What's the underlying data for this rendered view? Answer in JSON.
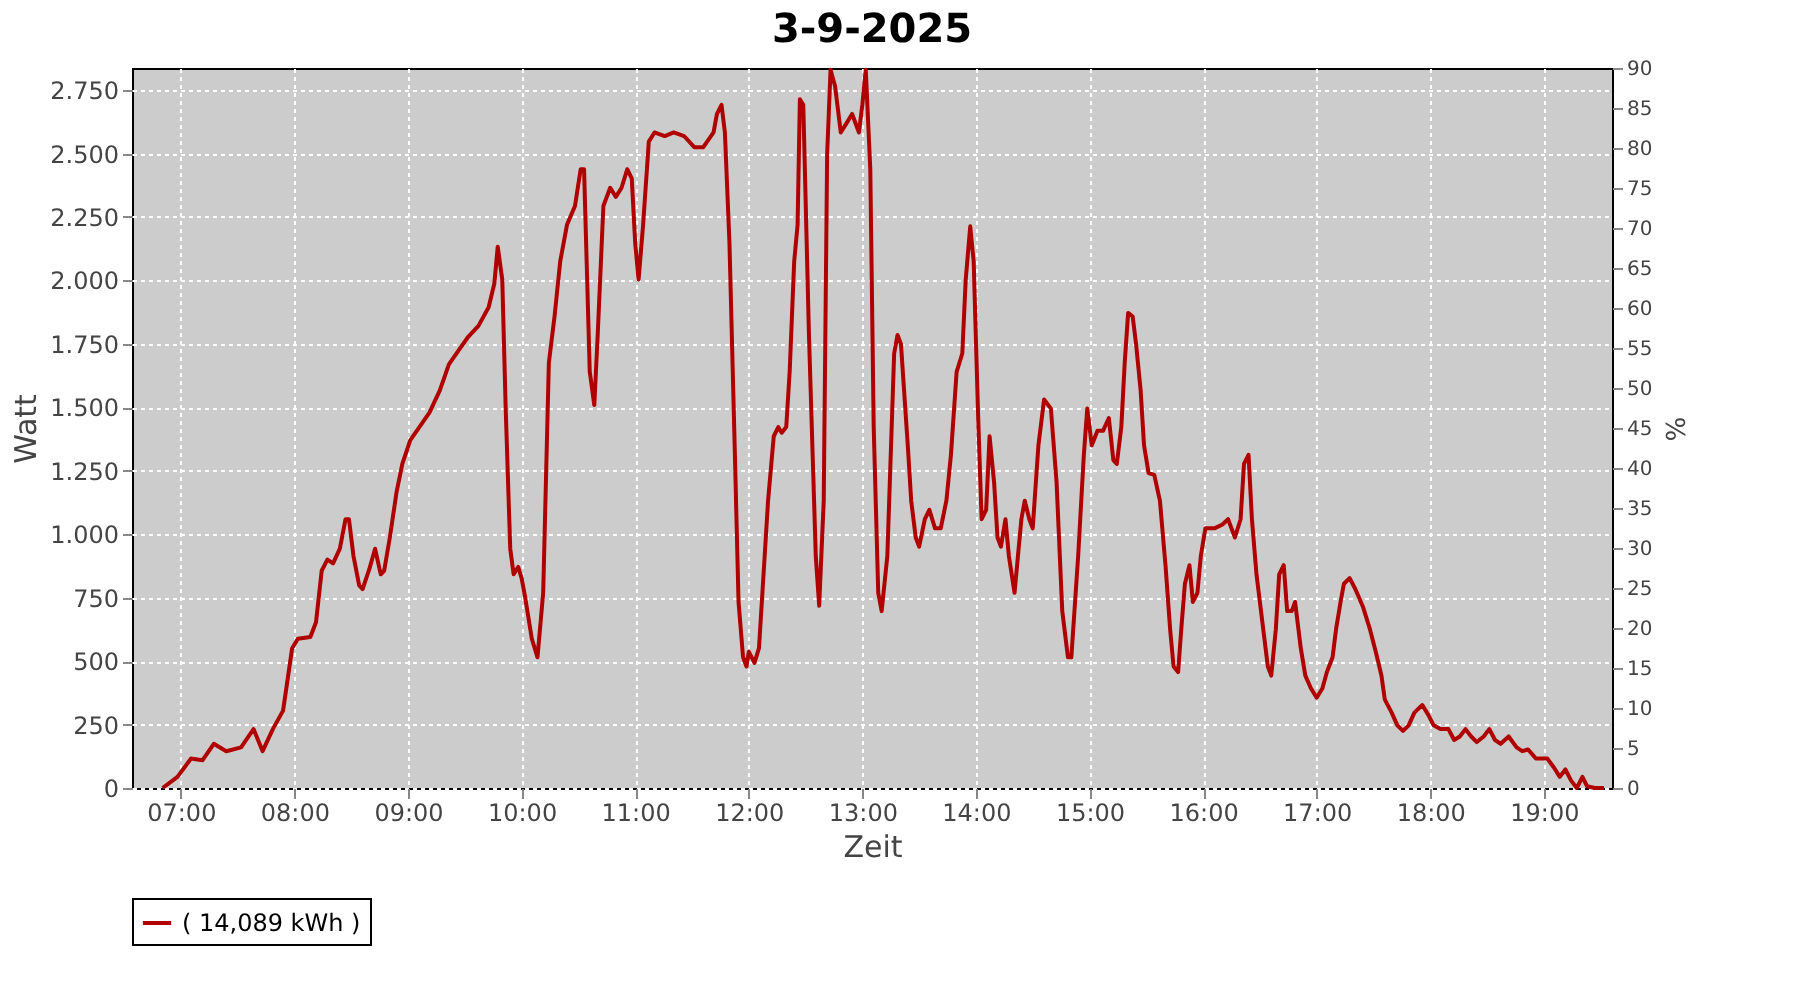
{
  "chart_data": {
    "type": "line",
    "title": "3-9-2025",
    "xlabel": "Zeit",
    "ylabel": "Watt",
    "y2label": "%",
    "xlim": [
      6.57,
      19.6
    ],
    "xticks": [
      {
        "value": 7,
        "label": "07:00"
      },
      {
        "value": 8,
        "label": "08:00"
      },
      {
        "value": 9,
        "label": "09:00"
      },
      {
        "value": 10,
        "label": "10:00"
      },
      {
        "value": 11,
        "label": "11:00"
      },
      {
        "value": 12,
        "label": "12:00"
      },
      {
        "value": 13,
        "label": "13:00"
      },
      {
        "value": 14,
        "label": "14:00"
      },
      {
        "value": 15,
        "label": "15:00"
      },
      {
        "value": 16,
        "label": "16:00"
      },
      {
        "value": 17,
        "label": "17:00"
      },
      {
        "value": 18,
        "label": "18:00"
      },
      {
        "value": 19,
        "label": "19:00"
      }
    ],
    "ylim": [
      0,
      2837
    ],
    "yticks": [
      0,
      250,
      500,
      750,
      {
        "value": 1000,
        "label": "1.000"
      },
      {
        "value": 1250,
        "label": "1.250"
      },
      {
        "value": 1500,
        "label": "1.500"
      },
      {
        "value": 1750,
        "label": "1.750"
      },
      {
        "value": 2000,
        "label": "2.000"
      },
      {
        "value": 2250,
        "label": "2.250"
      },
      {
        "value": 2500,
        "label": "2.500"
      },
      {
        "value": 2750,
        "label": "2.750"
      }
    ],
    "y2lim": [
      0,
      90
    ],
    "y2ticks": [
      0,
      5,
      10,
      15,
      20,
      25,
      30,
      35,
      40,
      45,
      50,
      55,
      60,
      65,
      70,
      75,
      80,
      85,
      90
    ],
    "grid": true,
    "legend": "bottom",
    "marker": "none",
    "line_style": "solid",
    "series": [
      {
        "name": "( 14,089 kWh )",
        "color": "#b00000",
        "x": [
          6.84,
          6.97,
          7.09,
          7.19,
          7.29,
          7.4,
          7.53,
          7.64,
          7.72,
          7.81,
          7.9,
          7.98,
          8.03,
          8.14,
          8.19,
          8.24,
          8.29,
          8.34,
          8.4,
          8.45,
          8.48,
          8.52,
          8.57,
          8.6,
          8.66,
          8.71,
          8.76,
          8.79,
          8.84,
          8.9,
          8.95,
          9.02,
          9.1,
          9.19,
          9.28,
          9.36,
          9.45,
          9.53,
          9.62,
          9.71,
          9.76,
          9.79,
          9.83,
          9.86,
          9.9,
          9.93,
          9.97,
          10.0,
          10.03,
          10.09,
          10.14,
          10.19,
          10.24,
          10.29,
          10.34,
          10.4,
          10.47,
          10.52,
          10.55,
          10.6,
          10.64,
          10.67,
          10.72,
          10.78,
          10.83,
          10.88,
          10.93,
          10.97,
          11.0,
          11.03,
          11.07,
          11.12,
          11.17,
          11.26,
          11.34,
          11.43,
          11.52,
          11.6,
          11.69,
          11.72,
          11.76,
          11.79,
          11.83,
          11.88,
          11.91,
          11.95,
          11.98,
          12.0,
          12.05,
          12.09,
          12.12,
          12.17,
          12.22,
          12.26,
          12.29,
          12.33,
          12.36,
          12.4,
          12.43,
          12.45,
          12.48,
          12.53,
          12.59,
          12.62,
          12.66,
          12.69,
          12.72,
          12.76,
          12.81,
          12.86,
          12.91,
          12.97,
          13.0,
          13.03,
          13.07,
          13.1,
          13.14,
          13.17,
          13.22,
          13.28,
          13.31,
          13.34,
          13.4,
          13.43,
          13.47,
          13.5,
          13.55,
          13.59,
          13.64,
          13.69,
          13.74,
          13.78,
          13.83,
          13.88,
          13.91,
          13.95,
          13.98,
          14.02,
          14.05,
          14.09,
          14.12,
          14.16,
          14.19,
          14.22,
          14.26,
          14.29,
          14.34,
          14.4,
          14.43,
          14.47,
          14.5,
          14.55,
          14.6,
          14.66,
          14.71,
          14.76,
          14.81,
          14.84,
          14.9,
          14.95,
          14.98,
          15.02,
          15.07,
          15.12,
          15.17,
          15.21,
          15.24,
          15.28,
          15.31,
          15.34,
          15.38,
          15.41,
          15.45,
          15.48,
          15.52,
          15.57,
          15.62,
          15.67,
          15.71,
          15.74,
          15.78,
          15.81,
          15.84,
          15.88,
          15.91,
          15.95,
          15.98,
          16.02,
          16.05,
          16.1,
          16.17,
          16.22,
          16.28,
          16.33,
          16.36,
          16.4,
          16.43,
          16.47,
          16.52,
          16.57,
          16.6,
          16.64,
          16.67,
          16.71,
          16.74,
          16.78,
          16.81,
          16.86,
          16.9,
          16.95,
          17.0,
          17.05,
          17.09,
          17.14,
          17.17,
          17.21,
          17.24,
          17.29,
          17.34,
          17.41,
          17.47,
          17.52,
          17.57,
          17.6,
          17.66,
          17.71,
          17.76,
          17.81,
          17.86,
          17.93,
          17.98,
          18.03,
          18.09,
          18.16,
          18.21,
          18.26,
          18.31,
          18.36,
          18.41,
          18.47,
          18.52,
          18.57,
          18.62,
          18.69,
          18.76,
          18.81,
          18.86,
          18.93,
          19.03,
          19.09,
          19.14,
          19.19,
          19.24,
          19.29,
          19.34,
          19.38,
          19.45,
          19.53
        ],
        "values": [
          0,
          44,
          116,
          109,
          174,
          145,
          160,
          232,
          145,
          232,
          305,
          551,
          588,
          595,
          653,
          856,
          900,
          885,
          943,
          1059,
          1059,
          914,
          798,
          784,
          863,
          943,
          842,
          856,
          987,
          1168,
          1277,
          1371,
          1422,
          1480,
          1567,
          1669,
          1727,
          1778,
          1821,
          1894,
          1988,
          2133,
          2003,
          1495,
          943,
          842,
          871,
          827,
          755,
          588,
          515,
          769,
          1676,
          1858,
          2075,
          2220,
          2293,
          2438,
          2438,
          1640,
          1509,
          1785,
          2293,
          2365,
          2329,
          2365,
          2438,
          2402,
          2148,
          2003,
          2220,
          2547,
          2583,
          2569,
          2583,
          2569,
          2525,
          2525,
          2583,
          2656,
          2692,
          2583,
          2148,
          1277,
          733,
          515,
          479,
          537,
          493,
          551,
          769,
          1132,
          1386,
          1422,
          1400,
          1422,
          1640,
          2075,
          2220,
          2714,
          2692,
          1785,
          914,
          718,
          1132,
          2496,
          2830,
          2765,
          2583,
          2619,
          2656,
          2583,
          2692,
          2830,
          2438,
          1422,
          769,
          697,
          914,
          1712,
          1785,
          1749,
          1350,
          1132,
          987,
          951,
          1059,
          1096,
          1023,
          1023,
          1132,
          1313,
          1640,
          1712,
          2003,
          2213,
          2075,
          1458,
          1059,
          1096,
          1386,
          1204,
          987,
          951,
          1059,
          914,
          769,
          1059,
          1132,
          1059,
          1023,
          1350,
          1531,
          1495,
          1204,
          697,
          515,
          515,
          914,
          1313,
          1495,
          1350,
          1408,
          1408,
          1458,
          1292,
          1277,
          1422,
          1676,
          1872,
          1858,
          1749,
          1567,
          1350,
          1241,
          1234,
          1132,
          871,
          624,
          479,
          457,
          639,
          805,
          878,
          733,
          769,
          914,
          1023,
          1023,
          1023,
          1038,
          1059,
          987,
          1059,
          1277,
          1313,
          1059,
          842,
          660,
          479,
          443,
          624,
          842,
          878,
          697,
          697,
          733,
          551,
          443,
          392,
          356,
          392,
          457,
          515,
          624,
          733,
          805,
          827,
          784,
          711,
          624,
          537,
          443,
          348,
          297,
          247,
          225,
          247,
          297,
          327,
          290,
          247,
          232,
          232,
          189,
          203,
          232,
          203,
          181,
          203,
          232,
          189,
          174,
          203,
          160,
          145,
          152,
          116,
          116,
          80,
          44,
          73,
          29,
          0,
          44,
          7,
          0,
          0
        ]
      }
    ]
  }
}
